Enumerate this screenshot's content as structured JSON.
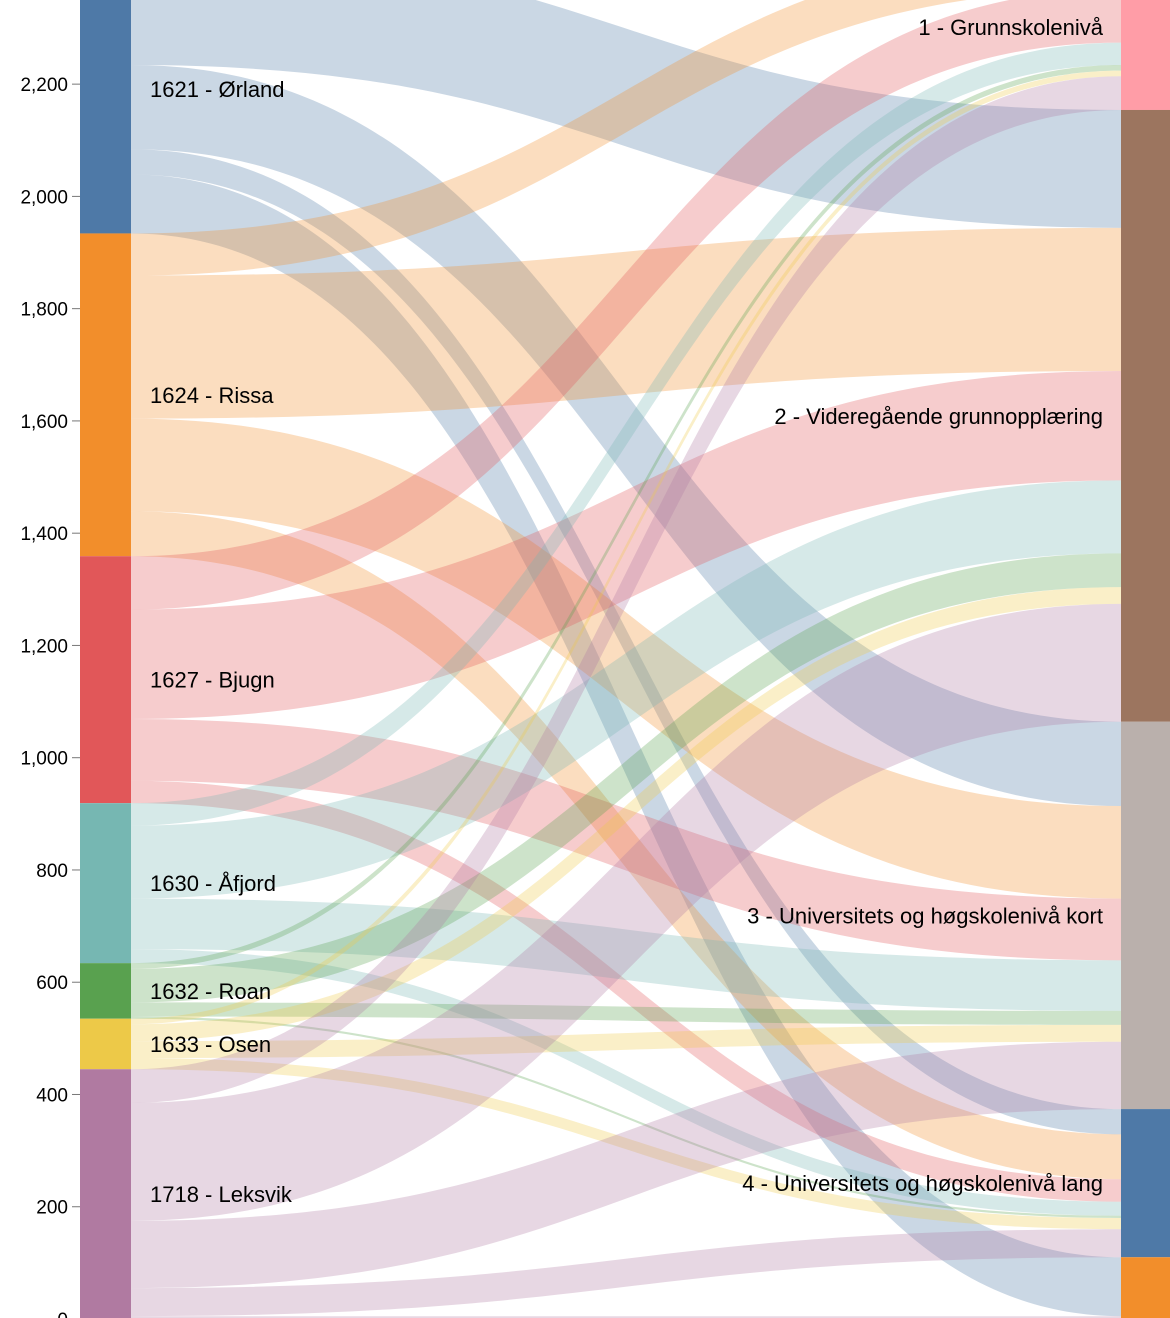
{
  "chart_data": {
    "type": "sankey",
    "y_axis": {
      "ticks": [
        0,
        200,
        400,
        600,
        800,
        1000,
        1200,
        1400,
        1600,
        1800,
        2000,
        2200
      ],
      "tick_labels": [
        "0",
        "200",
        "400",
        "600",
        "800",
        "1,000",
        "1,200",
        "1,400",
        "1,600",
        "1,800",
        "2,000",
        "2,200"
      ],
      "range": [
        0,
        2320
      ]
    },
    "sources": [
      {
        "label": "1621 - Ørland",
        "color": "#4e79a7"
      },
      {
        "label": "1624 - Rissa",
        "color": "#f28e2b"
      },
      {
        "label": "1627 - Bjugn",
        "color": "#e15759"
      },
      {
        "label": "1630 - Åfjord",
        "color": "#76b7b2"
      },
      {
        "label": "1632 - Roan",
        "color": "#59a14f"
      },
      {
        "label": "1633 - Osen",
        "color": "#edc948"
      },
      {
        "label": "1718 - Leksvik",
        "color": "#b07aa1"
      }
    ],
    "targets": [
      {
        "label": "1 - Grunnskolenivå",
        "color": "#ff9da7"
      },
      {
        "label": "2 - Videregående grunnopplæring",
        "color": "#9c755f"
      },
      {
        "label": "3 - Universitets og høgskolenivå kort",
        "color": "#bab0ac"
      },
      {
        "label": "4 - Universitets og høgskolenivå lang",
        "color": "#4e79a7"
      },
      {
        "label": "",
        "color": "#f28e2b"
      }
    ],
    "flows": [
      {
        "source": "1621 - Ørland",
        "target": "",
        "value": 105
      },
      {
        "source": "1621 - Ørland",
        "target": "2 - Videregående grunnopplæring",
        "value": 210
      },
      {
        "source": "1621 - Ørland",
        "target": "3 - Universitets og høgskolenivå kort",
        "value": 150
      },
      {
        "source": "1621 - Ørland",
        "target": "4 - Universitets og høgskolenivå lang",
        "value": 45
      },
      {
        "source": "1621 - Ørland",
        "target": "1 - Grunnskolenivå",
        "value": 5
      },
      {
        "source": "1624 - Rissa",
        "target": "1 - Grunnskolenivå",
        "value": 75
      },
      {
        "source": "1624 - Rissa",
        "target": "2 - Videregående grunnopplæring",
        "value": 255
      },
      {
        "source": "1624 - Rissa",
        "target": "3 - Universitets og høgskolenivå kort",
        "value": 165
      },
      {
        "source": "1624 - Rissa",
        "target": "4 - Universitets og høgskolenivå lang",
        "value": 80
      },
      {
        "source": "1627 - Bjugn",
        "target": "1 - Grunnskolenivå",
        "value": 95
      },
      {
        "source": "1627 - Bjugn",
        "target": "2 - Videregående grunnopplæring",
        "value": 195
      },
      {
        "source": "1627 - Bjugn",
        "target": "3 - Universitets og høgskolenivå kort",
        "value": 110
      },
      {
        "source": "1627 - Bjugn",
        "target": "4 - Universitets og høgskolenivå lang",
        "value": 40
      },
      {
        "source": "1630 - Åfjord",
        "target": "1 - Grunnskolenivå",
        "value": 40
      },
      {
        "source": "1630 - Åfjord",
        "target": "2 - Videregående grunnopplæring",
        "value": 130
      },
      {
        "source": "1630 - Åfjord",
        "target": "3 - Universitets og høgskolenivå kort",
        "value": 90
      },
      {
        "source": "1630 - Åfjord",
        "target": "4 - Universitets og høgskolenivå lang",
        "value": 25
      },
      {
        "source": "1632 - Roan",
        "target": "1 - Grunnskolenivå",
        "value": 10
      },
      {
        "source": "1632 - Roan",
        "target": "2 - Videregående grunnopplæring",
        "value": 60
      },
      {
        "source": "1632 - Roan",
        "target": "3 - Universitets og høgskolenivå kort",
        "value": 25
      },
      {
        "source": "1632 - Roan",
        "target": "4 - Universitets og høgskolenivå lang",
        "value": 4
      },
      {
        "source": "1633 - Osen",
        "target": "1 - Grunnskolenivå",
        "value": 10
      },
      {
        "source": "1633 - Osen",
        "target": "2 - Videregående grunnopplæring",
        "value": 30
      },
      {
        "source": "1633 - Osen",
        "target": "3 - Universitets og høgskolenivå kort",
        "value": 30
      },
      {
        "source": "1633 - Osen",
        "target": "4 - Universitets og høgskolenivå lang",
        "value": 20
      },
      {
        "source": "1718 - Leksvik",
        "target": "1 - Grunnskolenivå",
        "value": 60
      },
      {
        "source": "1718 - Leksvik",
        "target": "2 - Videregående grunnopplæring",
        "value": 210
      },
      {
        "source": "1718 - Leksvik",
        "target": "3 - Universitets og høgskolenivå kort",
        "value": 120
      },
      {
        "source": "1718 - Leksvik",
        "target": "4 - Universitets og høgskolenivå lang",
        "value": 50
      },
      {
        "source": "1718 - Leksvik",
        "target": "",
        "value": 5
      }
    ]
  }
}
